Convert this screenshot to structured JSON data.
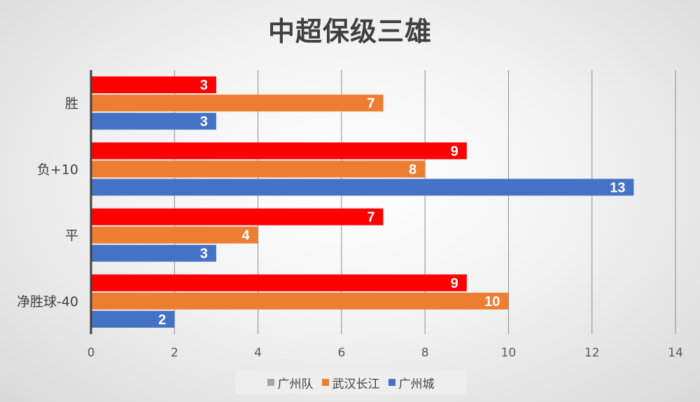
{
  "chart_data": {
    "type": "bar",
    "orientation": "horizontal",
    "title": "中超保级三雄",
    "categories": [
      "胜",
      "负+10",
      "平",
      "净胜球-40"
    ],
    "series": [
      {
        "name": "广州队",
        "values": [
          3,
          9,
          7,
          9
        ],
        "color": "#ff0000",
        "legend_color": "#a5a5a5"
      },
      {
        "name": "武汉长江",
        "values": [
          7,
          8,
          4,
          10
        ],
        "color": "#ed7d31",
        "legend_color": "#ed7d31"
      },
      {
        "name": "广州城",
        "values": [
          3,
          13,
          3,
          2
        ],
        "color": "#4472c4",
        "legend_color": "#4472c4"
      }
    ],
    "xlim": [
      0,
      14
    ],
    "xticks": [
      "0",
      "2",
      "4",
      "6",
      "8",
      "10",
      "12",
      "14"
    ],
    "grid": true,
    "legend_position": "bottom",
    "data_labels": true
  }
}
